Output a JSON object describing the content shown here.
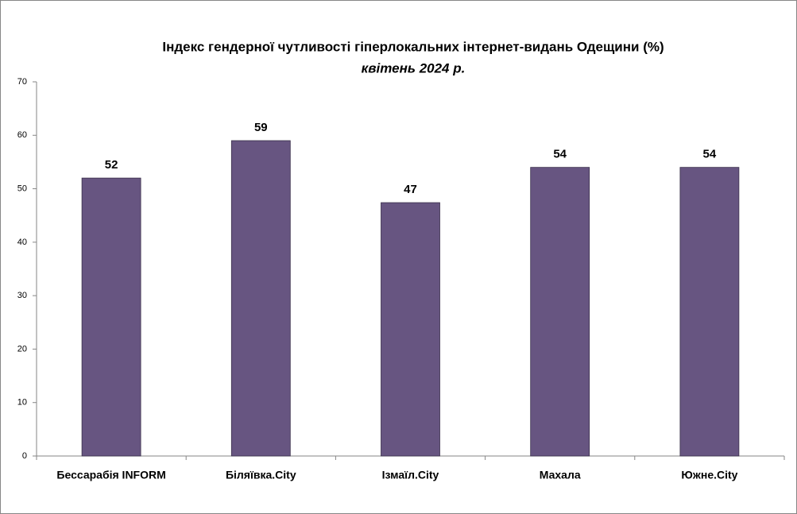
{
  "chart_data": {
    "type": "bar",
    "title": "Індекс гендерної чутливості гіперлокальних інтернет-видань Одещини (%)",
    "subtitle": "квітень 2024 р.",
    "categories": [
      "Бессарабія INFORM",
      "Біляївка.City",
      "Ізмаїл.City",
      "Махала",
      "Южне.City"
    ],
    "values": [
      52,
      59,
      47.4,
      54,
      54
    ],
    "value_labels": [
      "52",
      "59",
      "47",
      "54",
      "54"
    ],
    "color": "#675581",
    "ylim": [
      0,
      70
    ],
    "yticks": [
      0,
      10,
      20,
      30,
      40,
      50,
      60,
      70
    ],
    "grid": false
  }
}
